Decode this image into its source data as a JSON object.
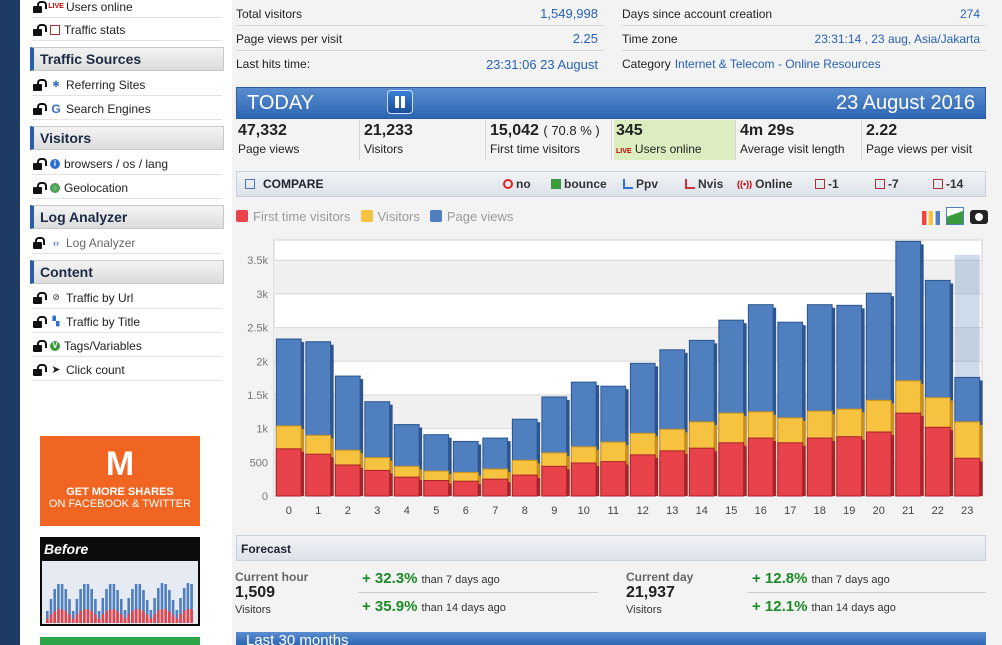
{
  "sidebar": {
    "items_top": [
      {
        "label": "Users online",
        "icon": "live-icon"
      },
      {
        "label": "Traffic stats",
        "icon": "calendar-icon"
      }
    ],
    "sections": [
      {
        "title": "Traffic Sources",
        "items": [
          {
            "label": "Referring Sites",
            "icon": "link-icon"
          },
          {
            "label": "Search Engines",
            "icon": "google-icon"
          }
        ]
      },
      {
        "title": "Visitors",
        "items": [
          {
            "label": "browsers / os / lang",
            "icon": "info-icon"
          },
          {
            "label": "Geolocation",
            "icon": "globe-icon"
          }
        ]
      },
      {
        "title": "Log Analyzer",
        "items": [
          {
            "label": "Log Analyzer",
            "icon": "code-icon"
          }
        ]
      },
      {
        "title": "Content",
        "items": [
          {
            "label": "Traffic by Url",
            "icon": "link-icon"
          },
          {
            "label": "Traffic by Title",
            "icon": "grid-icon"
          },
          {
            "label": "Tags/Variables",
            "icon": "v-icon"
          },
          {
            "label": "Click count",
            "icon": "cursor-icon"
          }
        ]
      }
    ],
    "ad1": {
      "logo": "M",
      "line1": "GET MORE SHARES",
      "line2": "ON FACEBOOK & TWITTER"
    },
    "ad2": {
      "title": "Before"
    }
  },
  "stats": {
    "total_visitors_label": "Total visitors",
    "total_visitors": "1,549,998",
    "ppv_label": "Page views per visit",
    "ppv": "2.25",
    "last_hits_label": "Last hits time:",
    "last_hits": "23:31:06 23 August",
    "days_label": "Days since account creation",
    "days": "274",
    "timezone_label": "Time zone",
    "timezone": "23:31:14 , 23 aug, Asia/Jakarta",
    "category_label": "Category",
    "category": "Internet & Telecom - Online Resources"
  },
  "today": {
    "title": "TODAY",
    "date": "23 August 2016"
  },
  "metrics": [
    {
      "value": "47,332",
      "label": "Page views"
    },
    {
      "value": "21,233",
      "label": "Visitors"
    },
    {
      "value": "15,042",
      "pct": "( 70.8 % )",
      "label": "First time visitors"
    },
    {
      "value": "345",
      "label": "Users online"
    },
    {
      "value": "4m 29s",
      "label": "Average visit length"
    },
    {
      "value": "2.22",
      "label": "Page views per visit"
    }
  ],
  "compare": {
    "title": "COMPARE",
    "buttons": [
      "no",
      "bounce",
      "Ppv",
      "Nvis",
      "Online",
      "-1",
      "-7",
      "-14"
    ]
  },
  "legend": [
    {
      "name": "First time visitors",
      "color": "#e8434a"
    },
    {
      "name": "Visitors",
      "color": "#f7c240"
    },
    {
      "name": "Page views",
      "color": "#4f7fbf"
    }
  ],
  "chart_data": {
    "type": "bar",
    "categories": [
      "0",
      "1",
      "2",
      "3",
      "4",
      "5",
      "6",
      "7",
      "8",
      "9",
      "10",
      "11",
      "12",
      "13",
      "14",
      "15",
      "16",
      "17",
      "18",
      "19",
      "20",
      "21",
      "22",
      "23"
    ],
    "series": [
      {
        "name": "Page views",
        "values": [
          2330,
          2290,
          1780,
          1400,
          1060,
          910,
          810,
          860,
          1140,
          1470,
          1690,
          1630,
          1970,
          2170,
          2310,
          2610,
          2840,
          2580,
          2840,
          2830,
          3010,
          3780,
          3200,
          1760
        ]
      },
      {
        "name": "Visitors",
        "values": [
          1040,
          900,
          680,
          570,
          440,
          370,
          350,
          400,
          530,
          640,
          730,
          800,
          930,
          990,
          1100,
          1230,
          1250,
          1160,
          1260,
          1290,
          1420,
          1710,
          1460,
          1100
        ]
      },
      {
        "name": "First time visitors",
        "values": [
          700,
          620,
          460,
          380,
          280,
          230,
          220,
          250,
          310,
          440,
          490,
          510,
          610,
          670,
          710,
          790,
          860,
          790,
          860,
          880,
          950,
          1230,
          1020,
          560
        ]
      }
    ],
    "ylim": [
      0,
      3800
    ],
    "yticks": [
      "0",
      "500",
      "1k",
      "1.5k",
      "2k",
      "2.5k",
      "3k",
      "3.5k"
    ],
    "projected": {
      "category": "23",
      "values": [
        3580,
        1560,
        1100
      ]
    }
  },
  "forecast": {
    "title": "Forecast",
    "hour": {
      "caption": "Current hour",
      "value": "1,509",
      "sub": "Visitors",
      "lines": [
        {
          "pct": "+ 32.3%",
          "text": "than 7 days ago"
        },
        {
          "pct": "+ 35.9%",
          "text": "than 14 days ago"
        }
      ]
    },
    "day": {
      "caption": "Current day",
      "value": "21,937",
      "sub": "Visitors",
      "lines": [
        {
          "pct": "+ 12.8%",
          "text": "than 7 days ago"
        },
        {
          "pct": "+ 12.1%",
          "text": "than 14 days ago"
        }
      ]
    }
  },
  "bottom": {
    "title": "Last 30 months"
  }
}
